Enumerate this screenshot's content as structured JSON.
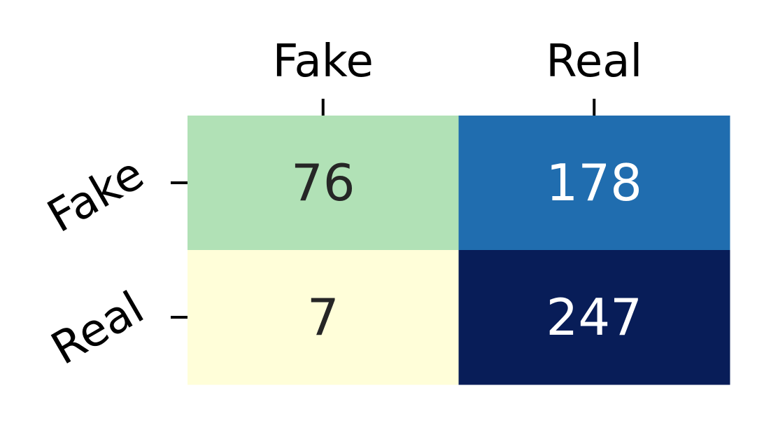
{
  "chart_data": {
    "type": "heatmap",
    "x_categories": [
      "Fake",
      "Real"
    ],
    "y_categories": [
      "Fake",
      "Real"
    ],
    "values": [
      [
        76,
        178
      ],
      [
        7,
        247
      ]
    ],
    "xlabel": "",
    "ylabel": "",
    "x_ticks_position": "top",
    "y_tick_rotation_deg": 30,
    "colormap": "YlGnBu",
    "value_range": [
      7,
      247
    ],
    "colorbar": false,
    "annotations": true
  }
}
